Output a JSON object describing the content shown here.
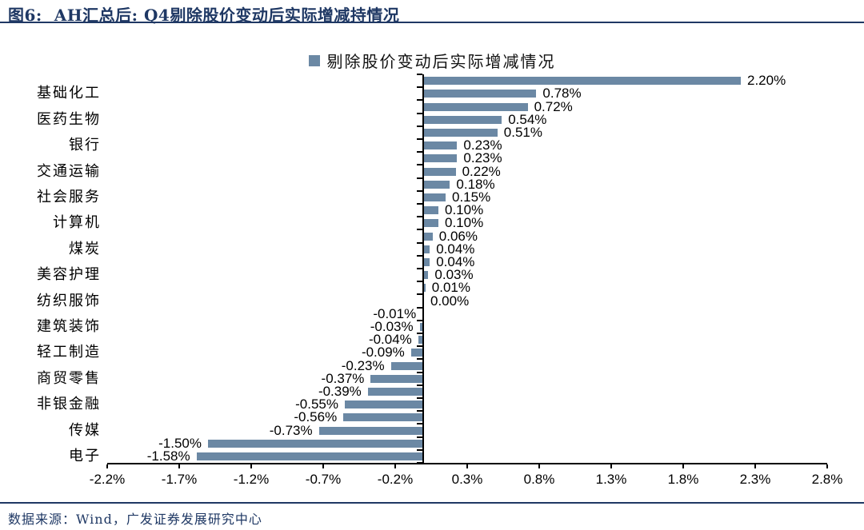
{
  "header": {
    "title": "图6:  AH汇总后: Q4剔除股价变动后实际增减持情况"
  },
  "legend": {
    "label": "剔除股价变动后实际增减情况"
  },
  "footer": {
    "source": "数据来源：Wind，广发证券发展研究中心"
  },
  "colors": {
    "bar": "#6b88a4",
    "navy": "#1f3864",
    "axis": "#000000"
  },
  "chart_data": {
    "type": "bar",
    "orientation": "horizontal",
    "legend": [
      "剔除股价变动后实际增减情况"
    ],
    "legend_position": "top",
    "grid": false,
    "xlim": [
      -2.2,
      2.8
    ],
    "x_ticks": [
      "-2.2%",
      "-1.7%",
      "-1.2%",
      "-0.7%",
      "-0.2%",
      "0.3%",
      "0.8%",
      "1.3%",
      "1.8%",
      "2.3%",
      "2.8%"
    ],
    "categories": [
      "",
      "基础化工",
      "",
      "医药生物",
      "",
      "银行",
      "",
      "交通运输",
      "",
      "社会服务",
      "",
      "计算机",
      "",
      "煤炭",
      "",
      "美容护理",
      "",
      "纺织服饰",
      "",
      "建筑装饰",
      "",
      "轻工制造",
      "",
      "商贸零售",
      "",
      "非银金融",
      "",
      "传媒",
      "",
      "电子"
    ],
    "values": [
      2.2,
      0.78,
      0.72,
      0.54,
      0.51,
      0.23,
      0.23,
      0.22,
      0.18,
      0.15,
      0.1,
      0.1,
      0.06,
      0.04,
      0.04,
      0.03,
      0.01,
      0.0,
      -0.01,
      -0.03,
      -0.04,
      -0.09,
      -0.23,
      -0.37,
      -0.39,
      -0.55,
      -0.56,
      -0.73,
      -1.5,
      -1.58
    ],
    "value_labels": [
      "2.20%",
      "0.78%",
      "0.72%",
      "0.54%",
      "0.51%",
      "0.23%",
      "0.23%",
      "0.22%",
      "0.18%",
      "0.15%",
      "0.10%",
      "0.10%",
      "0.06%",
      "0.04%",
      "0.04%",
      "0.03%",
      "0.01%",
      "0.00%",
      "-0.01%",
      "-0.03%",
      "-0.04%",
      "-0.09%",
      "-0.23%",
      "-0.37%",
      "-0.39%",
      "-0.55%",
      "-0.56%",
      "-0.73%",
      "-1.50%",
      "-1.58%"
    ]
  }
}
